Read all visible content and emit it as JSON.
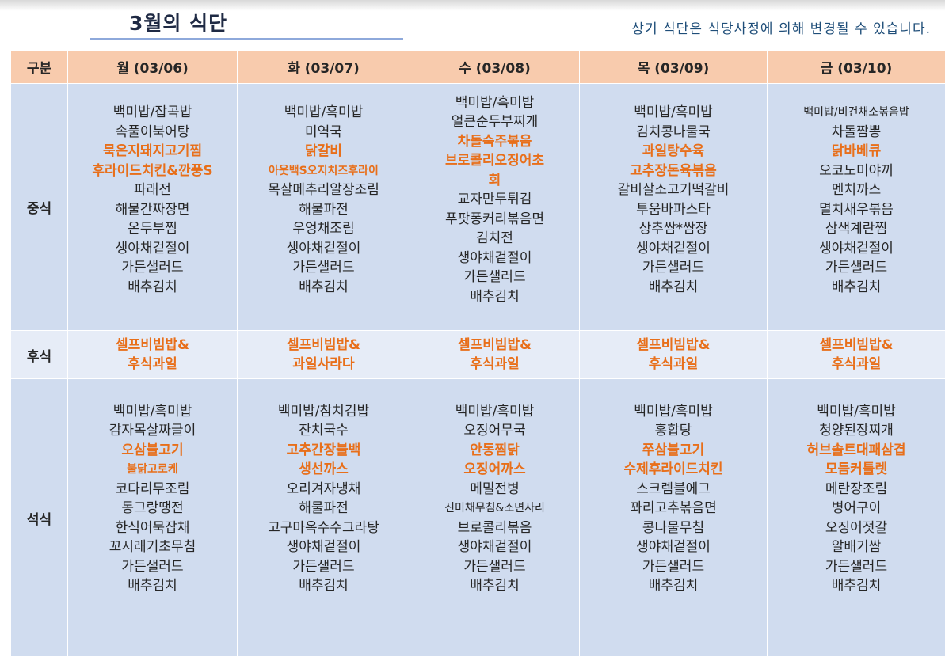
{
  "title": "3월의 식단",
  "notice": "상기 식단은 식당사정에 의해 변경될 수 있습니다.",
  "header": {
    "category": "구분",
    "days": [
      "월 (03/06)",
      "화 (03/07)",
      "수 (03/08)",
      "목 (03/09)",
      "금 (03/10)"
    ]
  },
  "colors": {
    "header_bg": "#f8cbad",
    "cell_bg": "#d0dcef",
    "snack_bg": "#e6ecf7",
    "highlight": "#e86f1a"
  },
  "rows": [
    {
      "label": "중식",
      "days": [
        [
          {
            "text": "백미밥/잡곡밥"
          },
          {
            "text": "속풀이북어탕"
          },
          {
            "text": "묵은지돼지고기찜",
            "hl": true
          },
          {
            "text": "후라이드치킨&깐풍S",
            "hl": true
          },
          {
            "text": "파래전"
          },
          {
            "text": "해물간짜장면"
          },
          {
            "text": "온두부찜"
          },
          {
            "text": "생야채겉절이"
          },
          {
            "text": "가든샐러드"
          },
          {
            "text": "배추김치"
          }
        ],
        [
          {
            "text": "백미밥/흑미밥"
          },
          {
            "text": "미역국"
          },
          {
            "text": "닭갈비",
            "hl": true
          },
          {
            "text": "아웃백S오지치즈후라이",
            "hl": true,
            "sm": true
          },
          {
            "text": "목살메추리알장조림"
          },
          {
            "text": "해물파전"
          },
          {
            "text": "우엉채조림"
          },
          {
            "text": "생야채겉절이"
          },
          {
            "text": "가든샐러드"
          },
          {
            "text": "배추김치"
          }
        ],
        [
          {
            "text": "백미밥/흑미밥"
          },
          {
            "text": "얼큰순두부찌개"
          },
          {
            "text": "차돌숙주볶음",
            "hl": true
          },
          {
            "text": "브로콜리오징어초",
            "hl": true
          },
          {
            "text": "회",
            "hl": true
          },
          {
            "text": "교자만두튀김"
          },
          {
            "text": "푸팟퐁커리볶음면"
          },
          {
            "text": "김치전"
          },
          {
            "text": "생야채겉절이"
          },
          {
            "text": "가든샐러드"
          },
          {
            "text": "배추김치"
          }
        ],
        [
          {
            "text": "백미밥/흑미밥"
          },
          {
            "text": "김치콩나물국"
          },
          {
            "text": "과일탕수육",
            "hl": true
          },
          {
            "text": "고추장돈육볶음",
            "hl": true
          },
          {
            "text": "갈비살소고기떡갈비"
          },
          {
            "text": "투움바파스타"
          },
          {
            "text": "상추쌈*쌈장"
          },
          {
            "text": "생야채겉절이"
          },
          {
            "text": "가든샐러드"
          },
          {
            "text": "배추김치"
          }
        ],
        [
          {
            "text": "백미밥/비건채소볶음밥",
            "sm": true
          },
          {
            "text": "차돌짬뽕"
          },
          {
            "text": "닭바베큐",
            "hl": true
          },
          {
            "text": "오코노미야끼"
          },
          {
            "text": "멘치까스"
          },
          {
            "text": "멸치새우볶음"
          },
          {
            "text": "삼색계란찜"
          },
          {
            "text": "생야채겉절이"
          },
          {
            "text": "가든샐러드"
          },
          {
            "text": "배추김치"
          }
        ]
      ]
    },
    {
      "label": "후식",
      "days": [
        [
          {
            "text": "셀프비빔밥&",
            "hl": true
          },
          {
            "text": "후식과일",
            "hl": true
          }
        ],
        [
          {
            "text": "셀프비빔밥&",
            "hl": true
          },
          {
            "text": "과일사라다",
            "hl": true
          }
        ],
        [
          {
            "text": "셀프비빔밥&",
            "hl": true
          },
          {
            "text": "후식과일",
            "hl": true
          }
        ],
        [
          {
            "text": "셀프비빔밥&",
            "hl": true
          },
          {
            "text": "후식과일",
            "hl": true
          }
        ],
        [
          {
            "text": "셀프비빔밥&",
            "hl": true
          },
          {
            "text": "후식과일",
            "hl": true
          }
        ]
      ]
    },
    {
      "label": "석식",
      "days": [
        [
          {
            "text": "백미밥/흑미밥"
          },
          {
            "text": "감자목살짜글이"
          },
          {
            "text": "오삼불고기",
            "hl": true
          },
          {
            "text": "불닭고로케",
            "hl": true,
            "sm": true
          },
          {
            "text": "코다리무조림"
          },
          {
            "text": "동그랑땡전"
          },
          {
            "text": "한식어묵잡채"
          },
          {
            "text": "꼬시래기초무침"
          },
          {
            "text": "가든샐러드"
          },
          {
            "text": "배추김치"
          }
        ],
        [
          {
            "text": "백미밥/참치김밥"
          },
          {
            "text": "잔치국수"
          },
          {
            "text": "고추간장불백",
            "hl": true
          },
          {
            "text": "생선까스",
            "hl": true
          },
          {
            "text": "오리겨자냉채"
          },
          {
            "text": "해물파전"
          },
          {
            "text": "고구마옥수수그라탕"
          },
          {
            "text": "생야채겉절이"
          },
          {
            "text": "가든샐러드"
          },
          {
            "text": "배추김치"
          }
        ],
        [
          {
            "text": "백미밥/흑미밥"
          },
          {
            "text": "오징어무국"
          },
          {
            "text": "안동찜닭",
            "hl": true
          },
          {
            "text": "오징어까스",
            "hl": true
          },
          {
            "text": "메밀전병"
          },
          {
            "text": "진미채무침&소면사리",
            "sm": true
          },
          {
            "text": "브로콜리볶음"
          },
          {
            "text": "생야채겉절이"
          },
          {
            "text": "가든샐러드"
          },
          {
            "text": "배추김치"
          }
        ],
        [
          {
            "text": "백미밥/흑미밥"
          },
          {
            "text": "홍합탕"
          },
          {
            "text": "쭈삼불고기",
            "hl": true
          },
          {
            "text": "수제후라이드치킨",
            "hl": true
          },
          {
            "text": "스크렘블에그"
          },
          {
            "text": "꽈리고추볶음면"
          },
          {
            "text": "콩나물무침"
          },
          {
            "text": "생야채겉절이"
          },
          {
            "text": "가든샐러드"
          },
          {
            "text": "배추김치"
          }
        ],
        [
          {
            "text": "백미밥/흑미밥"
          },
          {
            "text": "청양된장찌개"
          },
          {
            "text": "허브솔트대패삼겹",
            "hl": true
          },
          {
            "text": "모듬커틀렛",
            "hl": true
          },
          {
            "text": "메란장조림"
          },
          {
            "text": "병어구이"
          },
          {
            "text": "오징어젓갈"
          },
          {
            "text": "알배기쌈"
          },
          {
            "text": "가든샐러드"
          },
          {
            "text": "배추김치"
          }
        ]
      ]
    }
  ]
}
